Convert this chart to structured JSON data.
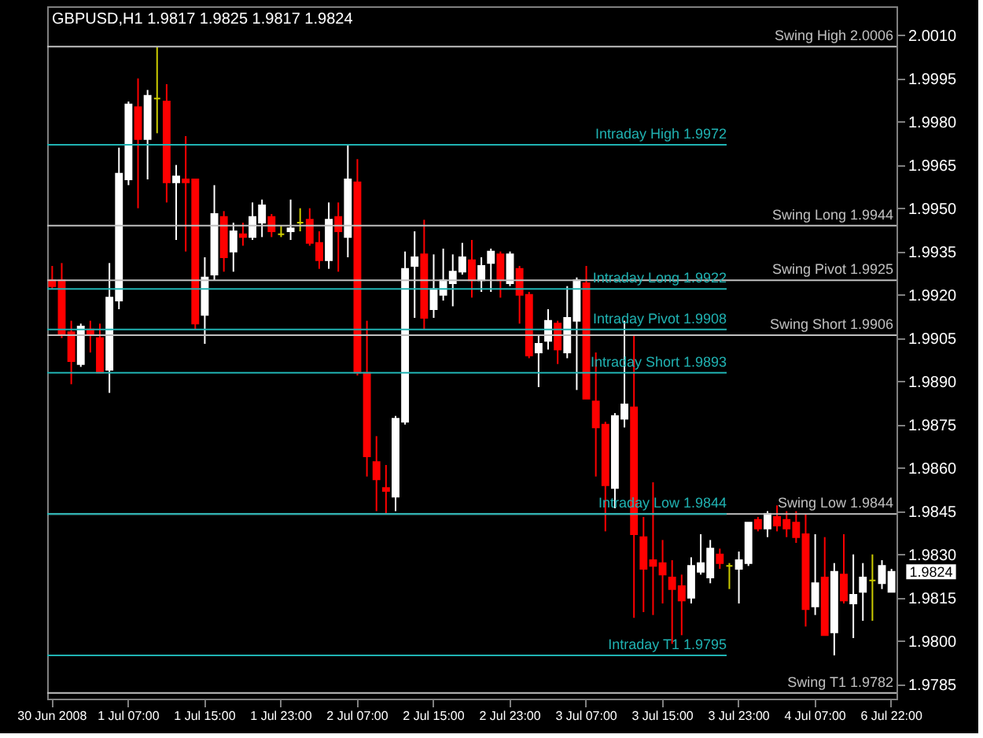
{
  "chart_data": {
    "type": "candlestick",
    "title": "GBPUSD,H1 1.9817 1.9825 1.9817 1.9824",
    "categories": [
      "30 Jun 2008",
      null,
      null,
      null,
      null,
      null,
      null,
      null,
      "1 Jul 07:00",
      null,
      null,
      null,
      null,
      null,
      null,
      null,
      "1 Jul 15:00",
      null,
      null,
      null,
      null,
      null,
      null,
      null,
      "1 Jul 23:00",
      null,
      null,
      null,
      null,
      null,
      null,
      null,
      "2 Jul 07:00",
      null,
      null,
      null,
      null,
      null,
      null,
      null,
      "2 Jul 15:00",
      null,
      null,
      null,
      null,
      null,
      null,
      null,
      "2 Jul 23:00",
      null,
      null,
      null,
      null,
      null,
      null,
      null,
      "3 Jul 07:00",
      null,
      null,
      null,
      null,
      null,
      null,
      null,
      "3 Jul 15:00",
      null,
      null,
      null,
      null,
      null,
      null,
      null,
      "3 Jul 23:00",
      null,
      null,
      null,
      null,
      null,
      null,
      null,
      "4 Jul 07:00",
      null,
      null,
      null,
      null,
      null,
      null,
      null,
      "6 Jul 22:00"
    ],
    "ohlc": [
      [
        1.9925,
        1.993,
        1.9922,
        1.9923
      ],
      [
        1.9925,
        1.9931,
        1.9905,
        1.9906
      ],
      [
        1.9907,
        1.9911,
        1.9889,
        1.9897
      ],
      [
        1.9896,
        1.991,
        1.9895,
        1.9909
      ],
      [
        1.9908,
        1.9911,
        1.99,
        1.9906
      ],
      [
        1.9905,
        1.991,
        1.9893,
        1.9893
      ],
      [
        1.9894,
        1.9931,
        1.9886,
        1.9919
      ],
      [
        1.9918,
        1.9971,
        1.9915,
        1.9962
      ],
      [
        1.996,
        1.9987,
        1.9958,
        1.9986
      ],
      [
        1.9985,
        1.9995,
        1.995,
        1.9974
      ],
      [
        1.9974,
        1.9991,
        1.996,
        1.9989
      ],
      [
        1.9988,
        2.0006,
        1.9976,
        1.9988
      ],
      [
        1.9987,
        1.9993,
        1.9952,
        1.9959
      ],
      [
        1.9959,
        1.9965,
        1.9939,
        1.9961
      ],
      [
        1.996,
        1.9975,
        1.9935,
        1.9959
      ],
      [
        1.996,
        1.996,
        1.9908,
        1.991
      ],
      [
        1.9913,
        1.9933,
        1.9903,
        1.9926
      ],
      [
        1.9927,
        1.9958,
        1.9925,
        1.9948
      ],
      [
        1.9947,
        1.9949,
        1.9928,
        1.9933
      ],
      [
        1.9935,
        1.9945,
        1.9928,
        1.9942
      ],
      [
        1.9941,
        1.9945,
        1.9937,
        1.994
      ],
      [
        1.994,
        1.9952,
        1.9939,
        1.9947
      ],
      [
        1.9945,
        1.9953,
        1.994,
        1.9951
      ],
      [
        1.9947,
        1.9948,
        1.994,
        1.9942
      ],
      [
        1.9941,
        1.9944,
        1.994,
        1.9941
      ],
      [
        1.9942,
        1.9953,
        1.9939,
        1.9943
      ],
      [
        1.9945,
        1.995,
        1.9942,
        1.9945
      ],
      [
        1.9946,
        1.995,
        1.9937,
        1.9938
      ],
      [
        1.9938,
        1.9942,
        1.9929,
        1.9932
      ],
      [
        1.9932,
        1.9952,
        1.9929,
        1.9946
      ],
      [
        1.9947,
        1.9952,
        1.9928,
        1.9942
      ],
      [
        1.994,
        1.9972,
        1.9933,
        1.996
      ],
      [
        1.9959,
        1.9967,
        1.9892,
        1.9893
      ],
      [
        1.9893,
        1.9911,
        1.9857,
        1.9864
      ],
      [
        1.9862,
        1.9871,
        1.9845,
        1.9856
      ],
      [
        1.9853,
        1.9861,
        1.9844,
        1.9852
      ],
      [
        1.985,
        1.9878,
        1.9845,
        1.9877
      ],
      [
        1.9876,
        1.9935,
        1.9875,
        1.9929
      ],
      [
        1.993,
        1.9942,
        1.9912,
        1.9933
      ],
      [
        1.9934,
        1.9946,
        1.9908,
        1.9912
      ],
      [
        1.9915,
        1.9934,
        1.9912,
        1.9922
      ],
      [
        1.992,
        1.9936,
        1.9918,
        1.9925
      ],
      [
        1.9924,
        1.9934,
        1.9916,
        1.9928
      ],
      [
        1.9928,
        1.9938,
        1.9927,
        1.9933
      ],
      [
        1.9932,
        1.9939,
        1.9919,
        1.9925
      ],
      [
        1.9925,
        1.9933,
        1.9921,
        1.993
      ],
      [
        1.9931,
        1.9936,
        1.9921,
        1.9935
      ],
      [
        1.9934,
        1.9935,
        1.9919,
        1.9925
      ],
      [
        1.9924,
        1.9935,
        1.9923,
        1.9934
      ],
      [
        1.9929,
        1.993,
        1.991,
        1.992
      ],
      [
        1.992,
        1.9921,
        1.9898,
        1.9899
      ],
      [
        1.99,
        1.9906,
        1.9888,
        1.9903
      ],
      [
        1.9904,
        1.9915,
        1.9901,
        1.9911
      ],
      [
        1.991,
        1.9911,
        1.9896,
        1.9901
      ],
      [
        1.99,
        1.9923,
        1.9898,
        1.9912
      ],
      [
        1.9911,
        1.9926,
        1.9887,
        1.9925
      ],
      [
        1.9924,
        1.993,
        1.9884,
        1.9884
      ],
      [
        1.9883,
        1.99,
        1.9857,
        1.9874
      ],
      [
        1.9875,
        1.9876,
        1.9838,
        1.9854
      ],
      [
        1.9853,
        1.9879,
        1.9846,
        1.9878
      ],
      [
        1.9877,
        1.9911,
        1.9874,
        1.9882
      ],
      [
        1.9881,
        1.9906,
        1.9808,
        1.9837
      ],
      [
        1.9836,
        1.9843,
        1.981,
        1.9825
      ],
      [
        1.9828,
        1.9855,
        1.9809,
        1.9826
      ],
      [
        1.9827,
        1.9835,
        1.9813,
        1.9823
      ],
      [
        1.9822,
        1.9828,
        1.9799,
        1.9818
      ],
      [
        1.9819,
        1.9823,
        1.9802,
        1.9814
      ],
      [
        1.9815,
        1.9829,
        1.9813,
        1.9826
      ],
      [
        1.9824,
        1.9837,
        1.9823,
        1.9827
      ],
      [
        1.9822,
        1.9835,
        1.982,
        1.9832
      ],
      [
        1.983,
        1.9832,
        1.9825,
        1.9827
      ],
      [
        1.9826,
        1.9827,
        1.9818,
        1.9826
      ],
      [
        1.9825,
        1.9831,
        1.9813,
        1.9828
      ],
      [
        1.9827,
        1.9841,
        1.9826,
        1.9841
      ],
      [
        1.9842,
        1.9843,
        1.9838,
        1.9839
      ],
      [
        1.9839,
        1.9845,
        1.9836,
        1.9844
      ],
      [
        1.9843,
        1.9847,
        1.9838,
        1.984
      ],
      [
        1.9842,
        1.9845,
        1.9836,
        1.9839
      ],
      [
        1.9841,
        1.9845,
        1.9834,
        1.9836
      ],
      [
        1.9837,
        1.9844,
        1.9805,
        1.9811
      ],
      [
        1.9812,
        1.9837,
        1.9809,
        1.982
      ],
      [
        1.9822,
        1.9836,
        1.9802,
        1.9802
      ],
      [
        1.9803,
        1.9827,
        1.9795,
        1.9824
      ],
      [
        1.9823,
        1.9837,
        1.9813,
        1.9814
      ],
      [
        1.9813,
        1.983,
        1.9801,
        1.9816
      ],
      [
        1.9817,
        1.9827,
        1.9807,
        1.9822
      ],
      [
        1.9821,
        1.983,
        1.9807,
        1.9821
      ],
      [
        1.982,
        1.9828,
        1.9818,
        1.9826
      ],
      [
        1.9817,
        1.9825,
        1.9817,
        1.9824
      ]
    ],
    "colors": [
      "#ff0000",
      "#ff0000",
      "#ff0000",
      "#ffffff",
      "#ff0000",
      "#ff0000",
      "#ffffff",
      "#ffffff",
      "#ffffff",
      "#ff0000",
      "#ffffff",
      "#cccc00",
      "#ff0000",
      "#ffffff",
      "#ff0000",
      "#ff0000",
      "#ffffff",
      "#ffffff",
      "#ff0000",
      "#ffffff",
      "#ff0000",
      "#ffffff",
      "#ffffff",
      "#ff0000",
      "#cccc00",
      "#ffffff",
      "#cccc00",
      "#ff0000",
      "#ff0000",
      "#ffffff",
      "#ff0000",
      "#ffffff",
      "#ff0000",
      "#ff0000",
      "#ff0000",
      "#ff0000",
      "#ffffff",
      "#ffffff",
      "#ffffff",
      "#ff0000",
      "#ffffff",
      "#ffffff",
      "#ffffff",
      "#ffffff",
      "#ff0000",
      "#ffffff",
      "#ffffff",
      "#ff0000",
      "#ffffff",
      "#ff0000",
      "#ff0000",
      "#ffffff",
      "#ffffff",
      "#ff0000",
      "#ffffff",
      "#ffffff",
      "#ff0000",
      "#ff0000",
      "#ff0000",
      "#ffffff",
      "#ffffff",
      "#ff0000",
      "#ff0000",
      "#ff0000",
      "#ff0000",
      "#ff0000",
      "#ff0000",
      "#ffffff",
      "#ffffff",
      "#ffffff",
      "#ff0000",
      "#cccc00",
      "#ffffff",
      "#ffffff",
      "#ff0000",
      "#ffffff",
      "#ff0000",
      "#ff0000",
      "#ff0000",
      "#ff0000",
      "#ffffff",
      "#ff0000",
      "#ffffff",
      "#ff0000",
      "#ffffff",
      "#ffffff",
      "#cccc00",
      "#ffffff",
      "#ffffff"
    ],
    "ylim": [
      1.978,
      2.002
    ],
    "yticks": [
      1.9785,
      {
        "value": 1.98,
        "label": "1.9800"
      },
      1.9815,
      {
        "value": 1.983,
        "label": "1.9830"
      },
      1.9845,
      {
        "value": 1.986,
        "label": "1.9860"
      },
      1.9875,
      {
        "value": 1.989,
        "label": "1.9890"
      },
      1.9905,
      {
        "value": 1.992,
        "label": "1.9920"
      },
      1.9935,
      {
        "value": 1.995,
        "label": "1.9950"
      },
      1.9965,
      {
        "value": 1.998,
        "label": "1.9980"
      },
      1.9995,
      {
        "value": 2.001,
        "label": "2.0010"
      }
    ],
    "grid": false,
    "ref_lines": [
      {
        "axis": "y",
        "value": 2.0006,
        "label": "Swing High 2.0006",
        "color": "#c0c0c0"
      },
      {
        "axis": "y",
        "value": 1.9944,
        "label": "Swing Long 1.9944",
        "color": "#c0c0c0"
      },
      {
        "axis": "y",
        "value": 1.9925,
        "label": "Swing Pivot 1.9925",
        "color": "#c0c0c0"
      },
      {
        "axis": "y",
        "value": 1.9906,
        "label": "Swing Short 1.9906",
        "color": "#c0c0c0"
      },
      {
        "axis": "y",
        "value": 1.9844,
        "label": "Swing Low 1.9844",
        "color": "#c0c0c0"
      },
      {
        "axis": "y",
        "value": 1.9782,
        "label": "Swing T1 1.9782",
        "color": "#c0c0c0"
      },
      {
        "axis": "y",
        "value": 1.9972,
        "label": "Intraday High 1.9972",
        "color": "#20b2b2"
      },
      {
        "axis": "y",
        "value": 1.9922,
        "label": "Intraday Long 1.9922",
        "color": "#20b2b2"
      },
      {
        "axis": "y",
        "value": 1.9908,
        "label": "Intraday Pivot 1.9908",
        "color": "#20b2b2"
      },
      {
        "axis": "y",
        "value": 1.9893,
        "label": "Intraday Short 1.9893",
        "color": "#20b2b2"
      },
      {
        "axis": "y",
        "value": 1.9844,
        "label": "Intraday Low 1.9844",
        "color": "#20b2b2"
      },
      {
        "axis": "y",
        "value": 1.9795,
        "label": "Intraday T1 1.9795",
        "color": "#20b2b2"
      }
    ],
    "annotations": [
      "1.9824"
    ]
  }
}
